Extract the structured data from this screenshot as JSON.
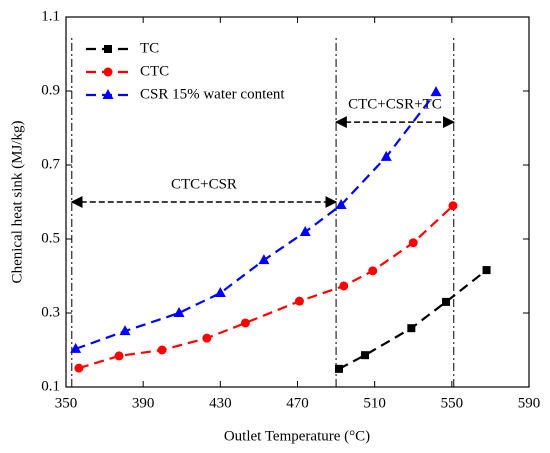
{
  "chart_data": {
    "type": "line",
    "xlabel": "Outlet Temperature (°C)",
    "ylabel": "Chenical heat sink (MJ/kg)",
    "xlim": [
      350,
      590
    ],
    "xticks": [
      350,
      390,
      430,
      470,
      510,
      550,
      590
    ],
    "ylim": [
      0.1,
      1.1
    ],
    "yticks": [
      0.1,
      0.3,
      0.5,
      0.7,
      0.9,
      1.1
    ],
    "legend": "upper left",
    "series": [
      {
        "name": "TC",
        "color": "#000000",
        "marker": "square",
        "x": [
          491.5,
          505,
          529,
          547,
          568
        ],
        "values": [
          0.149,
          0.186,
          0.259,
          0.33,
          0.416
        ]
      },
      {
        "name": "CTC",
        "color": "#ff0000",
        "marker": "circle",
        "x": [
          356.7,
          377.5,
          399.8,
          423,
          443,
          471,
          494,
          509,
          530,
          550.6
        ],
        "values": [
          0.151,
          0.184,
          0.2,
          0.232,
          0.273,
          0.332,
          0.373,
          0.414,
          0.49,
          0.59
        ]
      },
      {
        "name": "CSR  15% water content",
        "color": "#0000ff",
        "marker": "triangle",
        "x": [
          355,
          380.6,
          408.6,
          430,
          452.6,
          474,
          492.6,
          516,
          541.8
        ],
        "values": [
          0.203,
          0.251,
          0.3,
          0.354,
          0.443,
          0.519,
          0.592,
          0.722,
          0.897
        ]
      }
    ],
    "vlines": [
      353,
      490,
      551
    ],
    "annotations": [
      {
        "text": "CTC+CSR",
        "x": [
          353,
          490
        ],
        "y": 0.6
      },
      {
        "text": "CTC+CSR+TC",
        "x": [
          490,
          551
        ],
        "y": 0.816
      }
    ]
  }
}
